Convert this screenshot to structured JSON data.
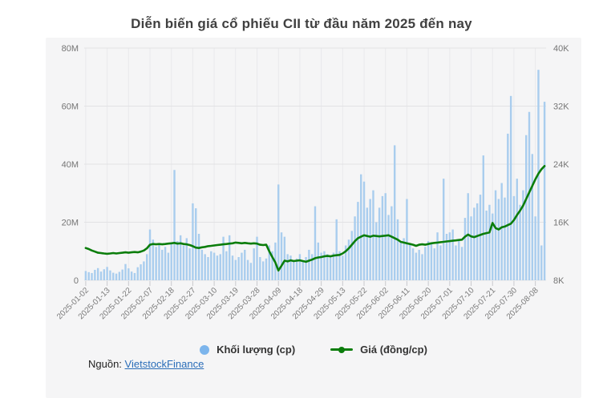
{
  "title": "Diễn biến giá cổ phiếu CII từ đầu năm 2025 đến nay",
  "source": {
    "prefix": "Nguồn: ",
    "link_text": "VietstockFinance"
  },
  "legend": [
    {
      "label": "Khối lượng (cp)",
      "marker": "circle",
      "color": "#7cb5ec"
    },
    {
      "label": "Giá (đồng/cp)",
      "marker": "line-dot",
      "color": "#0b7d0b"
    }
  ],
  "colors": {
    "panel_bg": "#f5f5f6",
    "bar": "#a9cdee",
    "line": "#0b7d0b",
    "grid_h": "#e2e2e4",
    "grid_v": "#e9e9ec",
    "tick": "#c9c9cd",
    "axis_label": "#757575",
    "x_label": "#7a7a7a"
  },
  "chart_data": {
    "type": "bar",
    "subtype": "bar+line combo",
    "title": "Diễn biến giá cổ phiếu CII từ đầu năm 2025 đến nay",
    "grid": true,
    "legend_position": "bottom",
    "left_axis": {
      "label": "Khối lượng (cp)",
      "min": 0,
      "max": 80000000,
      "ticks": [
        "0",
        "20M",
        "40M",
        "60M",
        "80M"
      ]
    },
    "right_axis": {
      "label": "Giá (đồng/cp)",
      "min": 8000,
      "max": 40000,
      "ticks": [
        "8K",
        "16K",
        "24K",
        "32K",
        "40K"
      ]
    },
    "x_tick_labels": [
      "2025-01-02",
      "2025-01-13",
      "2025-01-22",
      "2025-02-07",
      "2025-02-18",
      "2025-02-27",
      "2025-03-10",
      "2025-03-19",
      "2025-03-28",
      "2025-04-09",
      "2025-04-18",
      "2025-04-29",
      "2025-05-13",
      "2025-05-22",
      "2025-06-02",
      "2025-06-11",
      "2025-06-20",
      "2025-07-01",
      "2025-07-10",
      "2025-07-21",
      "2025-07-30",
      "2025-08-08"
    ],
    "x_tick_every": 7,
    "x": [
      "2025-01-02",
      "2025-01-03",
      "2025-01-06",
      "2025-01-07",
      "2025-01-08",
      "2025-01-09",
      "2025-01-10",
      "2025-01-13",
      "2025-01-14",
      "2025-01-15",
      "2025-01-16",
      "2025-01-17",
      "2025-01-20",
      "2025-01-21",
      "2025-01-22",
      "2025-01-23",
      "2025-01-24",
      "2025-02-03",
      "2025-02-04",
      "2025-02-05",
      "2025-02-06",
      "2025-02-07",
      "2025-02-10",
      "2025-02-11",
      "2025-02-12",
      "2025-02-13",
      "2025-02-14",
      "2025-02-17",
      "2025-02-18",
      "2025-02-19",
      "2025-02-20",
      "2025-02-21",
      "2025-02-24",
      "2025-02-25",
      "2025-02-26",
      "2025-02-27",
      "2025-02-28",
      "2025-03-03",
      "2025-03-04",
      "2025-03-05",
      "2025-03-06",
      "2025-03-07",
      "2025-03-10",
      "2025-03-11",
      "2025-03-12",
      "2025-03-13",
      "2025-03-14",
      "2025-03-17",
      "2025-03-18",
      "2025-03-19",
      "2025-03-20",
      "2025-03-21",
      "2025-03-24",
      "2025-03-25",
      "2025-03-26",
      "2025-03-27",
      "2025-03-28",
      "2025-03-31",
      "2025-04-01",
      "2025-04-02",
      "2025-04-03",
      "2025-04-04",
      "2025-04-08",
      "2025-04-09",
      "2025-04-10",
      "2025-04-11",
      "2025-04-14",
      "2025-04-15",
      "2025-04-16",
      "2025-04-17",
      "2025-04-18",
      "2025-04-21",
      "2025-04-22",
      "2025-04-23",
      "2025-04-24",
      "2025-04-25",
      "2025-04-28",
      "2025-04-29",
      "2025-05-05",
      "2025-05-06",
      "2025-05-07",
      "2025-05-08",
      "2025-05-09",
      "2025-05-12",
      "2025-05-13",
      "2025-05-14",
      "2025-05-15",
      "2025-05-16",
      "2025-05-19",
      "2025-05-20",
      "2025-05-21",
      "2025-05-22",
      "2025-05-23",
      "2025-05-26",
      "2025-05-27",
      "2025-05-28",
      "2025-05-29",
      "2025-05-30",
      "2025-06-02",
      "2025-06-03",
      "2025-06-04",
      "2025-06-05",
      "2025-06-06",
      "2025-06-09",
      "2025-06-10",
      "2025-06-11",
      "2025-06-12",
      "2025-06-13",
      "2025-06-16",
      "2025-06-17",
      "2025-06-18",
      "2025-06-19",
      "2025-06-20",
      "2025-06-23",
      "2025-06-24",
      "2025-06-25",
      "2025-06-26",
      "2025-06-27",
      "2025-06-30",
      "2025-07-01",
      "2025-07-02",
      "2025-07-03",
      "2025-07-04",
      "2025-07-07",
      "2025-07-08",
      "2025-07-09",
      "2025-07-10",
      "2025-07-11",
      "2025-07-14",
      "2025-07-15",
      "2025-07-16",
      "2025-07-17",
      "2025-07-18",
      "2025-07-21",
      "2025-07-22",
      "2025-07-23",
      "2025-07-24",
      "2025-07-25",
      "2025-07-28",
      "2025-07-29",
      "2025-07-30",
      "2025-07-31",
      "2025-08-01",
      "2025-08-04",
      "2025-08-05",
      "2025-08-06",
      "2025-08-07",
      "2025-08-08",
      "2025-08-11",
      "2025-08-12",
      "2025-08-13"
    ],
    "series": [
      {
        "name": "Khối lượng (cp)",
        "type": "bar",
        "axis": "left",
        "unit": "cp",
        "color": "#a9cdee",
        "values_millions": [
          3.2,
          2.8,
          2.5,
          3.6,
          4.2,
          3.0,
          3.8,
          4.6,
          3.4,
          2.6,
          2.3,
          2.9,
          3.7,
          5.6,
          4.1,
          3.0,
          2.5,
          4.5,
          5.5,
          6.5,
          9.0,
          17.5,
          14.0,
          11.5,
          12.5,
          10.5,
          11.5,
          9.5,
          13.0,
          38.0,
          13.5,
          15.5,
          12.0,
          14.5,
          11.0,
          26.5,
          24.8,
          16.0,
          10.5,
          9.0,
          8.0,
          10.0,
          9.5,
          8.5,
          9.0,
          15.0,
          10.0,
          15.5,
          8.5,
          7.0,
          8.0,
          9.5,
          10.5,
          7.0,
          6.0,
          11.0,
          15.0,
          8.0,
          6.5,
          7.5,
          12.0,
          10.0,
          13.0,
          33.0,
          16.5,
          15.0,
          9.0,
          8.5,
          7.0,
          7.5,
          9.0,
          6.5,
          8.0,
          10.5,
          9.0,
          25.5,
          13.0,
          9.5,
          10.0,
          9.0,
          8.5,
          9.5,
          21.0,
          10.0,
          8.5,
          12.0,
          14.0,
          17.0,
          22.0,
          27.0,
          36.5,
          34.0,
          25.0,
          28.0,
          31.0,
          20.0,
          25.0,
          29.0,
          30.0,
          22.5,
          25.5,
          46.5,
          21.0,
          13.0,
          14.5,
          28.0,
          12.5,
          11.0,
          9.5,
          10.5,
          9.0,
          11.5,
          13.5,
          12.5,
          11.0,
          16.5,
          12.0,
          35.0,
          16.0,
          16.5,
          17.5,
          12.0,
          13.5,
          11.5,
          21.5,
          30.0,
          22.0,
          25.0,
          26.5,
          29.5,
          43.0,
          24.0,
          26.0,
          23.0,
          31.0,
          28.0,
          33.5,
          28.5,
          50.5,
          63.5,
          29.0,
          35.0,
          26.0,
          31.0,
          50.0,
          58.0,
          43.5,
          22.0,
          72.5,
          12.0,
          61.5
        ]
      },
      {
        "name": "Giá (đồng/cp)",
        "type": "line",
        "axis": "right",
        "unit": "đồng/cp",
        "color": "#0b7d0b",
        "values_thousands": [
          12.45,
          12.3,
          12.1,
          11.95,
          11.8,
          11.75,
          11.7,
          11.65,
          11.7,
          11.75,
          11.7,
          11.75,
          11.8,
          11.85,
          11.8,
          11.85,
          11.9,
          11.85,
          11.95,
          12.1,
          12.4,
          12.9,
          13.0,
          12.95,
          13.0,
          12.95,
          13.0,
          13.05,
          13.1,
          13.15,
          13.05,
          13.1,
          13.0,
          12.95,
          12.85,
          12.7,
          12.5,
          12.45,
          12.55,
          12.6,
          12.7,
          12.75,
          12.8,
          12.85,
          12.9,
          12.95,
          13.0,
          13.05,
          13.1,
          13.2,
          13.15,
          13.1,
          13.15,
          13.1,
          13.05,
          13.1,
          13.05,
          12.9,
          12.85,
          12.9,
          12.0,
          11.2,
          10.45,
          9.35,
          10.0,
          10.7,
          10.6,
          10.75,
          10.65,
          10.7,
          10.75,
          10.65,
          10.55,
          10.7,
          10.85,
          11.05,
          11.15,
          11.2,
          11.3,
          11.35,
          11.3,
          11.4,
          11.45,
          11.5,
          11.7,
          12.0,
          12.4,
          12.9,
          13.4,
          13.8,
          14.0,
          14.2,
          14.1,
          14.0,
          14.15,
          14.1,
          14.05,
          14.1,
          14.15,
          14.2,
          14.0,
          13.8,
          13.6,
          13.3,
          13.2,
          13.1,
          13.0,
          12.9,
          12.75,
          12.9,
          12.95,
          12.9,
          13.0,
          13.1,
          13.15,
          13.2,
          13.25,
          13.3,
          13.35,
          13.4,
          13.45,
          13.5,
          13.55,
          13.6,
          14.0,
          14.3,
          14.05,
          13.95,
          14.1,
          14.25,
          14.4,
          14.5,
          14.6,
          15.9,
          15.2,
          15.0,
          15.3,
          15.4,
          15.6,
          15.8,
          16.3,
          17.0,
          17.6,
          18.3,
          19.2,
          20.1,
          21.0,
          21.9,
          22.7,
          23.3,
          23.75
        ]
      }
    ]
  }
}
